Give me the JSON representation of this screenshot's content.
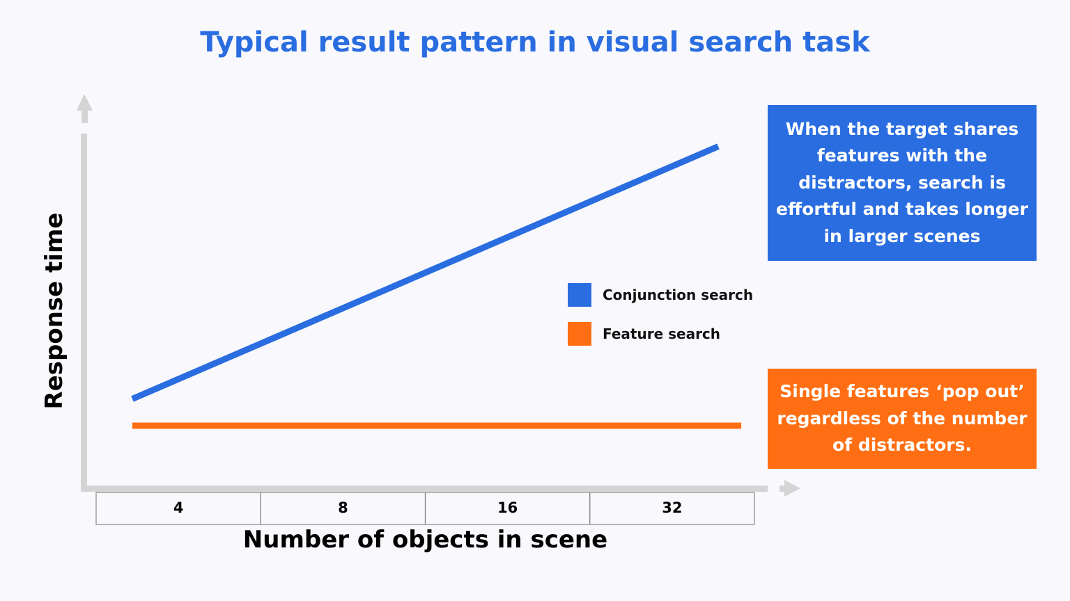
{
  "chart_data": {
    "type": "line",
    "title": "Typical result pattern in visual search task",
    "xlabel": "Number of objects in scene",
    "ylabel": "Response time",
    "categories": [
      "4",
      "8",
      "16",
      "32"
    ],
    "ylim": [
      0,
      100
    ],
    "grid": false,
    "legend_placement": "center-right",
    "series": [
      {
        "name": "Conjunction search",
        "color": "#2a6de0",
        "x": [
          -0.28,
          3.28
        ],
        "y": [
          23,
          89
        ]
      },
      {
        "name": "Feature search",
        "color": "#ff6e12",
        "x": [
          -0.28,
          3.42
        ],
        "y": [
          16,
          16
        ]
      }
    ],
    "annotations": [
      "When the target shares features with the distractors, search is effortful and takes longer in larger scenes",
      "Single features ‘pop out’ regardless of the number of distractors."
    ],
    "axis_color": "#d4d4d4"
  }
}
